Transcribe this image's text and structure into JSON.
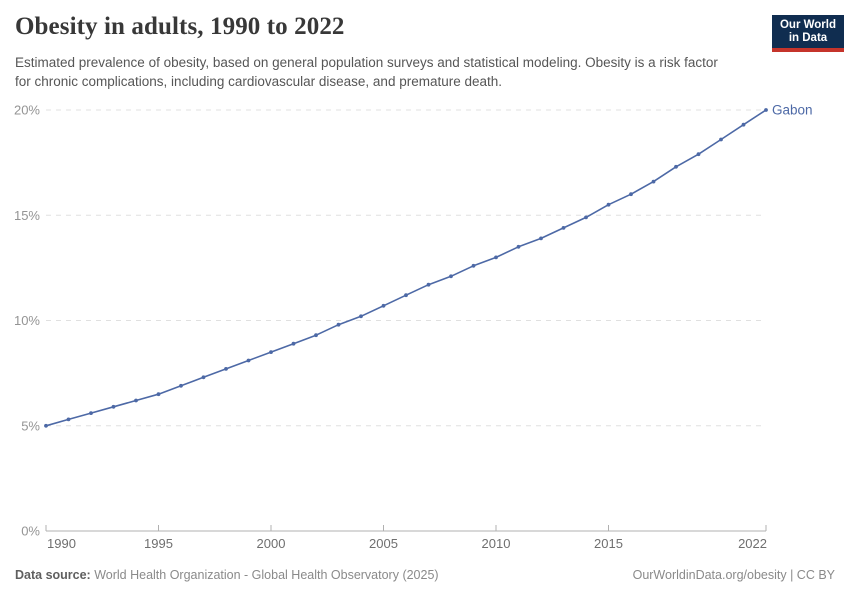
{
  "header": {
    "title": "Obesity in adults, 1990 to 2022",
    "subtitle": "Estimated prevalence of obesity, based on general population surveys and statistical modeling. Obesity is a risk factor for chronic complications, including cardiovascular disease, and premature death.",
    "logo": {
      "line1": "Our World",
      "line2": "in Data",
      "bg_color": "#102d50",
      "stripe_color": "#c5342b"
    }
  },
  "footer": {
    "datasource_label": "Data source:",
    "datasource_text": " World Health Organization - Global Health Observatory (2025)",
    "credit": "OurWorldinData.org/obesity | CC BY"
  },
  "chart_data": {
    "type": "line",
    "title": "Obesity in adults, 1990 to 2022",
    "xlabel": "",
    "ylabel": "",
    "x": [
      1990,
      1991,
      1992,
      1993,
      1994,
      1995,
      1996,
      1997,
      1998,
      1999,
      2000,
      2001,
      2002,
      2003,
      2004,
      2005,
      2006,
      2007,
      2008,
      2009,
      2010,
      2011,
      2012,
      2013,
      2014,
      2015,
      2016,
      2017,
      2018,
      2019,
      2020,
      2021,
      2022
    ],
    "series": [
      {
        "name": "Gabon",
        "color": "#4d69a6",
        "unit": "%",
        "values": [
          5.0,
          5.3,
          5.6,
          5.9,
          6.2,
          6.5,
          6.9,
          7.3,
          7.7,
          8.1,
          8.5,
          8.9,
          9.3,
          9.8,
          10.2,
          10.7,
          11.2,
          11.7,
          12.1,
          12.6,
          13.0,
          13.5,
          13.9,
          14.4,
          14.9,
          15.5,
          16.0,
          16.6,
          17.3,
          17.9,
          18.6,
          19.3,
          20.0
        ]
      }
    ],
    "xlim": [
      1990,
      2022
    ],
    "ylim": [
      0,
      20
    ],
    "y_ticks": [
      {
        "value": 0,
        "label": "0%"
      },
      {
        "value": 5,
        "label": "5%"
      },
      {
        "value": 10,
        "label": "10%"
      },
      {
        "value": 15,
        "label": "15%"
      },
      {
        "value": 20,
        "label": "20%"
      }
    ],
    "x_ticks": [
      {
        "value": 1990,
        "label": "1990",
        "align": "start"
      },
      {
        "value": 1995,
        "label": "1995",
        "align": "middle"
      },
      {
        "value": 2000,
        "label": "2000",
        "align": "middle"
      },
      {
        "value": 2005,
        "label": "2005",
        "align": "middle"
      },
      {
        "value": 2010,
        "label": "2010",
        "align": "middle"
      },
      {
        "value": 2015,
        "label": "2015",
        "align": "middle"
      },
      {
        "value": 2022,
        "label": "2022",
        "align": "end"
      }
    ],
    "grid": "horizontal-dashed",
    "legend_position": "end-of-line-label",
    "colors": {
      "grid": "#e0e0e0",
      "axis": "#b0b0b0",
      "y_label": "#949494",
      "x_label": "#6f6f6f"
    }
  }
}
